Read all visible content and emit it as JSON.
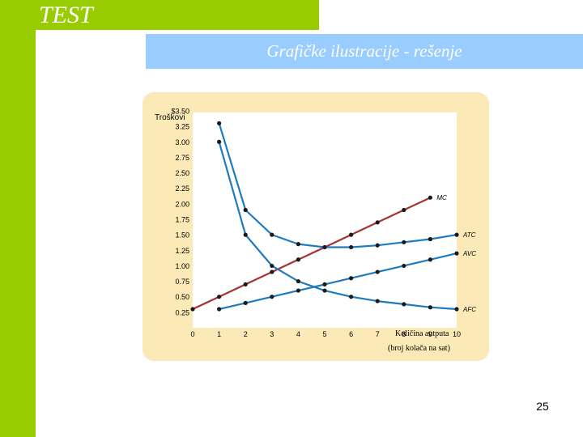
{
  "slide": {
    "header": "TEST",
    "banner": "Grafičke ilustracije - rešenje",
    "page_number": "25"
  },
  "colors": {
    "green": "#99cc00",
    "banner": "#99ccff",
    "panel": "#fbe9b7",
    "mc_line": "#a83232",
    "cost_lines": "#1e7bbf"
  },
  "chart_data": {
    "type": "line",
    "ylabel": "Troškovi",
    "xlabel": "Količina autputa",
    "xlabel2": "(broj kolača na sat)",
    "x_ticks": [
      "0",
      "1",
      "2",
      "3",
      "4",
      "5",
      "6",
      "7",
      "8",
      "9",
      "10"
    ],
    "y_ticks": [
      "$3.50",
      "3.25",
      "3.00",
      "2.75",
      "2.50",
      "2.25",
      "2.00",
      "1.75",
      "1.50",
      "1.25",
      "1.00",
      "0.75",
      "0.50",
      "0.25"
    ],
    "xlim": [
      0,
      10
    ],
    "ylim": [
      0,
      3.5
    ],
    "series": [
      {
        "name": "MC",
        "x": [
          0,
          1,
          2,
          3,
          4,
          5,
          6,
          7,
          8,
          9
        ],
        "values": [
          0.3,
          0.5,
          0.7,
          0.9,
          1.1,
          1.3,
          1.5,
          1.7,
          1.9,
          2.1
        ]
      },
      {
        "name": "ATC",
        "x": [
          1,
          2,
          3,
          4,
          5,
          6,
          7,
          8,
          9,
          10
        ],
        "values": [
          3.3,
          1.9,
          1.5,
          1.35,
          1.3,
          1.3,
          1.33,
          1.38,
          1.43,
          1.5
        ]
      },
      {
        "name": "AVC",
        "x": [
          1,
          2,
          3,
          4,
          5,
          6,
          7,
          8,
          9,
          10
        ],
        "values": [
          0.3,
          0.4,
          0.5,
          0.6,
          0.7,
          0.8,
          0.9,
          1.0,
          1.1,
          1.2
        ]
      },
      {
        "name": "AFC",
        "x": [
          1,
          2,
          3,
          4,
          5,
          6,
          7,
          8,
          9,
          10
        ],
        "values": [
          3.0,
          1.5,
          1.0,
          0.75,
          0.6,
          0.5,
          0.43,
          0.38,
          0.33,
          0.3
        ]
      }
    ]
  }
}
